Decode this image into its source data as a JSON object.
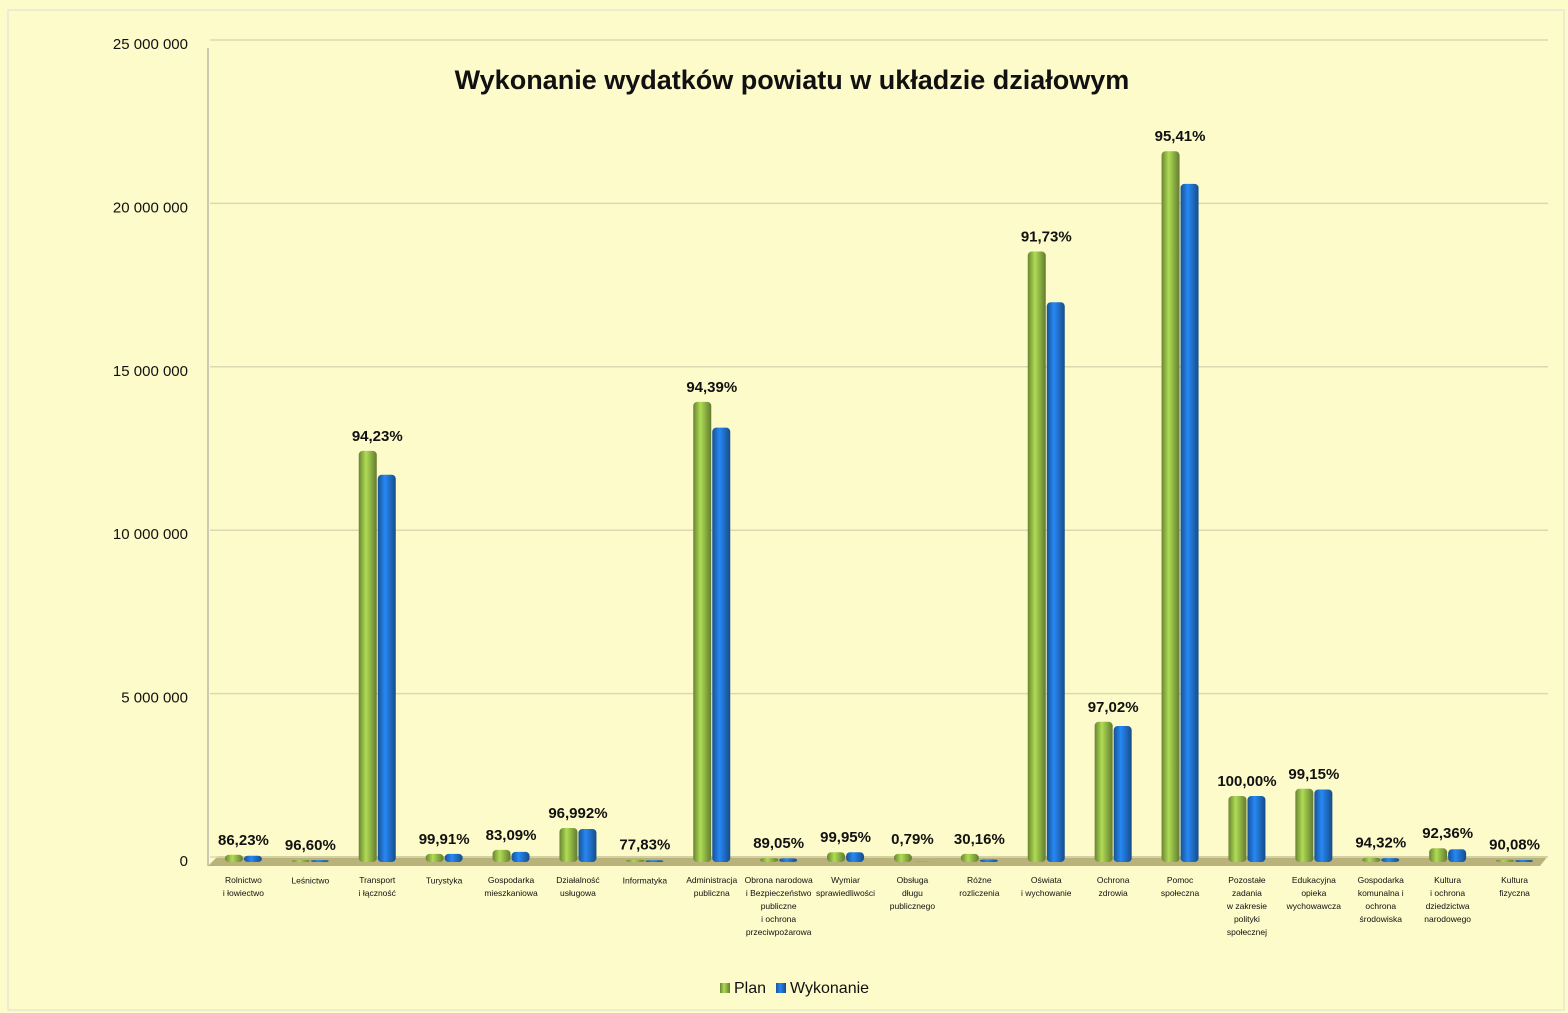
{
  "chart_data": {
    "type": "bar",
    "title": "Wykonanie wydatków powiatu w układzie działowym",
    "categories": [
      "Rolnictwo\ni łowiectwo",
      "Leśnictwo",
      "Transport\ni łączność",
      "Turystyka",
      "Gospodarka\nmieszkaniowa",
      "Działalność\nusługowa",
      "Informatyka",
      "Administracja\npubliczna",
      "Obrona narodowa\ni Bezpieczeństwo\npubliczne\ni ochrona\nprzeciwpożarowa",
      "Wymiar\nsprawiedliwości",
      "Obsługa\ndługu\npublicznego",
      "Różne\nrozliczenia",
      "Oświata\ni wychowanie",
      "Ochrona\nzdrowia",
      "Pomoc\nspołeczna",
      "Pozostałe\nzadania\nw zakresie\npolityki\nspołecznej",
      "Edukacyjna\nopieka\nwychowawcza",
      "Gospodarka\nkomunalna i\nochrona\nśrodowiska",
      "Kultura\ni ochrona\ndziedzictwa\nnarodowego",
      "Kultura\nfizyczna"
    ],
    "series": [
      {
        "name": "Plan",
        "color": "#8cb043",
        "values": [
          220000,
          60000,
          12580000,
          250000,
          370000,
          1040000,
          70000,
          14080000,
          120000,
          300000,
          250000,
          250000,
          18680000,
          4290000,
          21750000,
          2020000,
          2240000,
          130000,
          420000,
          70000
        ]
      },
      {
        "name": "Wykonanie",
        "color": "#1f6dc4",
        "values": [
          190000,
          58000,
          11850000,
          250000,
          310000,
          1010000,
          55000,
          13290000,
          110000,
          300000,
          2000,
          75000,
          17130000,
          4160000,
          20750000,
          2020000,
          2220000,
          120000,
          390000,
          63000
        ]
      }
    ],
    "percent_labels": [
      "86,23%",
      "96,60%",
      "94,23%",
      "99,91%",
      "83,09%",
      "96,992%",
      "77,83%",
      "94,39%",
      "89,05%",
      "99,95%",
      "0,79%",
      "30,16%",
      "91,73%",
      "97,02%",
      "95,41%",
      "100,00%",
      "99,15%",
      "94,32%",
      "92,36%",
      "90,08%"
    ],
    "ylim": [
      0,
      25000000
    ],
    "yticks": [
      0,
      {
        "value": 5000000,
        "label": "5 000 000"
      },
      {
        "value": 10000000,
        "label": "10 000 000"
      },
      {
        "value": 15000000,
        "label": "15 000 000"
      },
      {
        "value": 20000000,
        "label": "20 000 000"
      },
      {
        "value": 25000000,
        "label": "25 000 000"
      }
    ],
    "grid": true
  }
}
